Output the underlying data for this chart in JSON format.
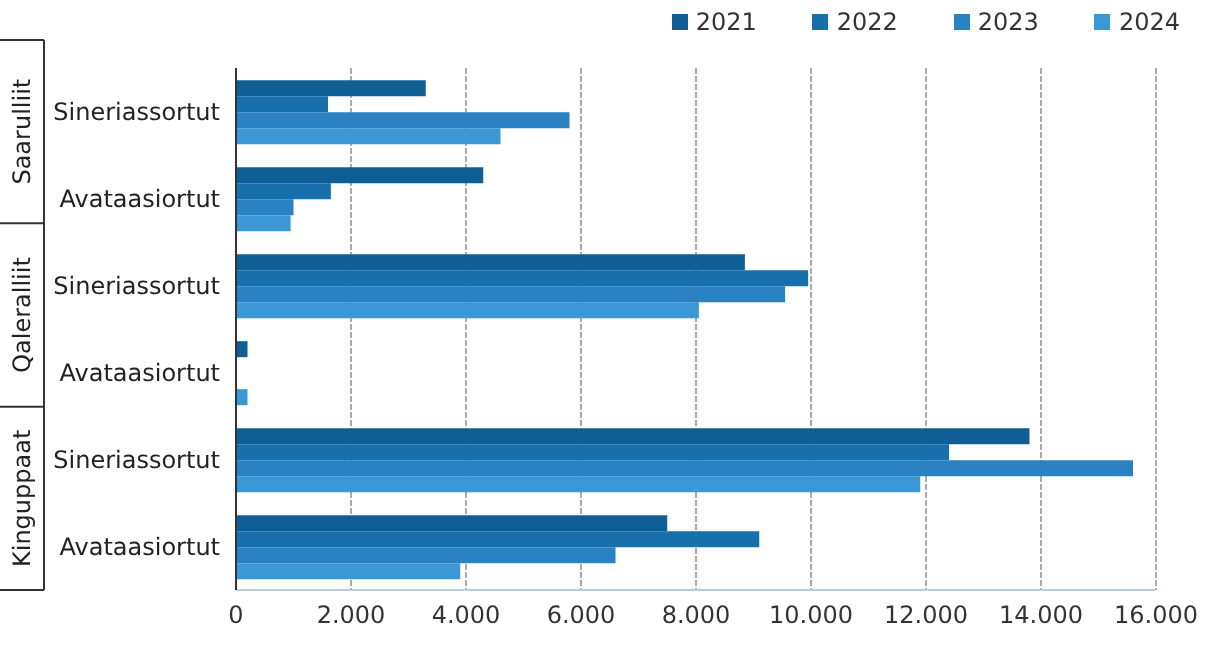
{
  "chart_data": {
    "type": "bar",
    "orientation": "horizontal",
    "categories": [
      "Sineriassortut",
      "Avataasiortut",
      "Sineriassortut",
      "Avataasiortut",
      "Sineriassortut",
      "Avataasiortut"
    ],
    "series": [
      {
        "name": "2021",
        "color": "#0f5f96",
        "values": [
          3300,
          4300,
          8850,
          200,
          13800,
          7500
        ]
      },
      {
        "name": "2022",
        "color": "#176fab",
        "values": [
          1600,
          1650,
          9950,
          0,
          12400,
          9100
        ]
      },
      {
        "name": "2023",
        "color": "#2a82c2",
        "values": [
          5800,
          1000,
          9550,
          0,
          15600,
          6600
        ]
      },
      {
        "name": "2024",
        "color": "#3c98d4",
        "values": [
          4600,
          950,
          8050,
          200,
          11900,
          3900
        ]
      }
    ],
    "xlim": [
      0,
      16000
    ],
    "xticks": [
      0,
      {
        "value": 2000,
        "label": "2.000"
      },
      {
        "value": 4000,
        "label": "4.000"
      },
      {
        "value": 6000,
        "label": "6.000"
      },
      {
        "value": 8000,
        "label": "8.000"
      },
      {
        "value": 10000,
        "label": "10.000"
      },
      {
        "value": 12000,
        "label": "12.000"
      },
      {
        "value": 14000,
        "label": "14.000"
      },
      {
        "value": 16000,
        "label": "16.000"
      }
    ],
    "annotations": [
      "Saarulliit",
      "Qaleralliit",
      "Kinguppaat"
    ],
    "grid": "x",
    "legend": "top right"
  }
}
